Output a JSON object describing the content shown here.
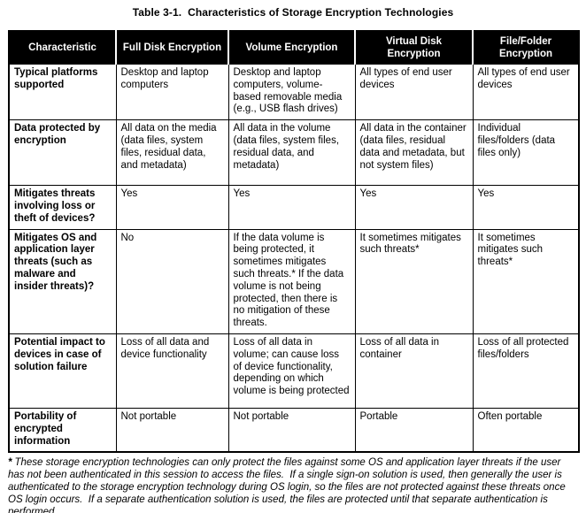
{
  "title": "Table 3-1.  Characteristics of Storage Encryption Technologies",
  "table": {
    "columns": [
      "Characteristic",
      "Full Disk Encryption",
      "Volume Encryption",
      "Virtual Disk Encryption",
      "File/Folder Encryption"
    ],
    "rows": [
      {
        "cells": [
          "Typical platforms supported",
          "Desktop and laptop computers",
          "Desktop and laptop computers, volume-based removable media (e.g., USB flash drives)",
          "All types of end user devices",
          "All types of end user devices"
        ]
      },
      {
        "cells": [
          "Data protected by encryption",
          "All data on the media (data files, system files, residual data, and metadata)",
          "All data in the volume (data files, system files, residual data, and metadata)",
          "All data in the container (data files, residual data and metadata, but not system files)",
          "Individual files/folders (data files only)"
        ]
      },
      {
        "cells": [
          "Mitigates threats involving loss or theft of devices?",
          "Yes",
          "Yes",
          "Yes",
          "Yes"
        ]
      },
      {
        "cells": [
          "Mitigates OS and application layer threats (such as malware and insider threats)?",
          "No",
          "If the data volume is being protected, it sometimes mitigates such threats.* If the data volume is not being protected, then there is no mitigation of these threats.",
          "It sometimes mitigates such threats*",
          "It sometimes mitigates such threats*"
        ]
      },
      {
        "cells": [
          "Potential impact to devices in case of solution failure",
          "Loss of all data and device functionality",
          "Loss of all data in volume; can cause loss of device functionality, depending on which volume is being protected",
          "Loss of all data in container",
          "Loss of all protected files/folders"
        ]
      },
      {
        "cells": [
          "Portability of encrypted information",
          "Not portable",
          "Not portable",
          "Portable",
          "Often portable"
        ]
      }
    ]
  },
  "footnote": {
    "marker": "*",
    "text": "These storage encryption technologies can only protect the files against some OS and application layer threats if the user has not been authenticated in this session to access the files.  If a single sign-on solution is used, then generally the user is authenticated to the storage encryption technology during OS login, so the files are not protected against these threats once OS login occurs.  If a separate authentication solution is used, the files are protected until that separate authentication is performed."
  },
  "colors": {
    "header_background": "#000000",
    "header_text": "#ffffff",
    "body_text": "#000000",
    "border": "#000000",
    "page_background": "#ffffff"
  }
}
